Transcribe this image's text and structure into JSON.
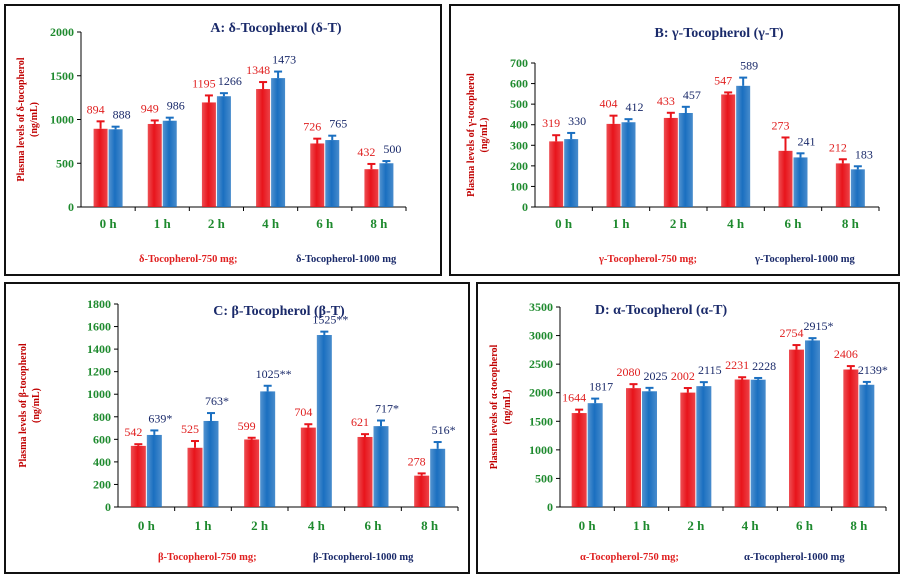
{
  "colors": {
    "series_750": "#e8141b",
    "series_1000": "#1a6fc0",
    "label_750": "#e02020",
    "label_1000": "#1a2a6a",
    "axis_text": "#1e8a2e",
    "ylabel": "#c00000"
  },
  "chart_data": [
    {
      "type": "bar",
      "title": "A: δ-Tocopherol (δ-T)",
      "ylabel": "Plasma levels of δ-tocopherol (ng/mL)",
      "categories": [
        "0 h",
        "1 h",
        "2 h",
        "4 h",
        "6 h",
        "8 h"
      ],
      "ylim": [
        0,
        2000
      ],
      "yticks": [
        "0",
        "500",
        "1000",
        "1500",
        "2000"
      ],
      "series": [
        {
          "name": "δ-Tocopherol-750 mg;",
          "values": [
            894,
            949,
            1195,
            1348,
            726,
            432
          ],
          "errors": [
            85,
            40,
            80,
            80,
            55,
            60
          ],
          "labels": [
            "894",
            "949",
            "1195",
            "1348",
            "726",
            "432"
          ]
        },
        {
          "name": "δ-Tocopherol-1000 mg",
          "values": [
            888,
            986,
            1266,
            1473,
            765,
            500
          ],
          "errors": [
            30,
            35,
            35,
            75,
            50,
            25
          ],
          "labels": [
            "888",
            "986",
            "1266",
            "1473",
            "765",
            "500"
          ]
        }
      ]
    },
    {
      "type": "bar",
      "title": "B: γ-Tocopherol (γ-T)",
      "ylabel": "Plasma levels of γ-tocopherol (ng/mL)",
      "categories": [
        "0 h",
        "1 h",
        "2 h",
        "4 h",
        "6 h",
        "8 h"
      ],
      "ylim": [
        0,
        700
      ],
      "yticks": [
        "0",
        "100",
        "200",
        "300",
        "400",
        "500",
        "600",
        "700"
      ],
      "series": [
        {
          "name": "γ-Tocopherol-750 mg;",
          "values": [
            319,
            404,
            433,
            547,
            273,
            212
          ],
          "errors": [
            30,
            40,
            25,
            10,
            65,
            20
          ],
          "labels": [
            "319",
            "404",
            "433",
            "547",
            "273",
            "212"
          ]
        },
        {
          "name": "γ-Tocopherol-1000 mg",
          "values": [
            330,
            412,
            457,
            589,
            241,
            183
          ],
          "errors": [
            30,
            15,
            30,
            40,
            20,
            15
          ],
          "labels": [
            "330",
            "412",
            "457",
            "589",
            "241",
            "183"
          ]
        }
      ]
    },
    {
      "type": "bar",
      "title": "C: β-Tocopherol (β-T)",
      "ylabel": "Plasma levels of β-tocopherol (ng/mL)",
      "categories": [
        "0 h",
        "1 h",
        "2 h",
        "4 h",
        "6 h",
        "8 h"
      ],
      "ylim": [
        0,
        1800
      ],
      "yticks": [
        "0",
        "200",
        "400",
        "600",
        "800",
        "1000",
        "1200",
        "1400",
        "1600",
        "1800"
      ],
      "series": [
        {
          "name": "β-Tocopherol-750 mg;",
          "values": [
            542,
            525,
            599,
            704,
            621,
            278
          ],
          "errors": [
            15,
            60,
            15,
            30,
            25,
            20
          ],
          "labels": [
            "542",
            "525",
            "599",
            "704",
            "621",
            "278"
          ]
        },
        {
          "name": "β-Tocopherol-1000 mg",
          "values": [
            639,
            763,
            1025,
            1525,
            717,
            516
          ],
          "errors": [
            40,
            70,
            50,
            30,
            50,
            60
          ],
          "labels": [
            "639*",
            "763*",
            "1025**",
            "1525**",
            "717*",
            "516*"
          ]
        }
      ]
    },
    {
      "type": "bar",
      "title": "D: α-Tocopherol (α-T)",
      "ylabel": "Plasma levels of α-tocopherol (ng/mL)",
      "categories": [
        "0 h",
        "1 h",
        "2 h",
        "4 h",
        "6 h",
        "8 h"
      ],
      "ylim": [
        0,
        3500
      ],
      "yticks": [
        "0",
        "500",
        "1000",
        "1500",
        "2000",
        "2500",
        "3000",
        "3500"
      ],
      "series": [
        {
          "name": "α-Tocopherol-750 mg;",
          "values": [
            1644,
            2080,
            2002,
            2231,
            2754,
            2406
          ],
          "errors": [
            60,
            70,
            80,
            40,
            80,
            60
          ],
          "labels": [
            "1644",
            "2080",
            "2002",
            "2231",
            "2754",
            "2406"
          ]
        },
        {
          "name": "α-Tocopherol-1000 mg",
          "values": [
            1817,
            2025,
            2115,
            2228,
            2915,
            2139
          ],
          "errors": [
            80,
            60,
            70,
            30,
            40,
            50
          ],
          "labels": [
            "1817",
            "2025",
            "2115",
            "2228",
            "2915*",
            "2139*"
          ]
        }
      ]
    }
  ]
}
